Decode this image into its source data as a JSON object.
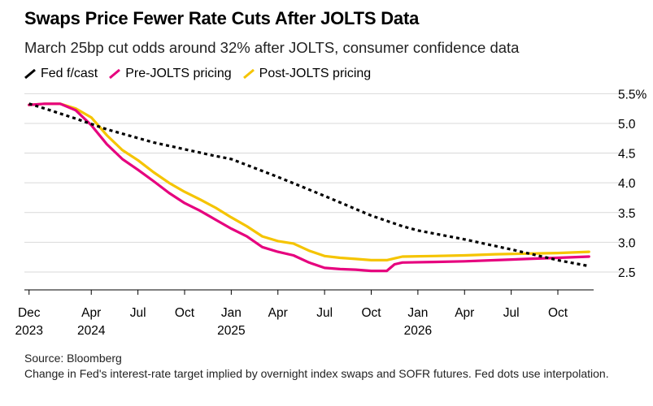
{
  "header": {
    "title": "Swaps Price Fewer Rate Cuts After JOLTS Data",
    "subtitle": "March 25bp cut odds around 32% after JOLTS, consumer confidence data"
  },
  "footer": {
    "source": "Source: Bloomberg",
    "note": "Change in Fed's interest-rate target implied by overnight index swaps and SOFR futures. Fed dots use interpolation."
  },
  "chart_data": {
    "type": "line",
    "title": "Swaps Price Fewer Rate Cuts After JOLTS Data",
    "subtitle": "March 25bp cut odds around 32% after JOLTS, consumer confidence data",
    "xlabel": "",
    "ylabel": "",
    "legend_position": "top-left",
    "grid": "horizontal",
    "x_unit": "months since Dec 2023",
    "xlim": [
      -0.3,
      36.3
    ],
    "ylim": [
      2.2,
      5.6
    ],
    "y_ticks": [
      {
        "value": 5.5,
        "label": "5.5%"
      },
      {
        "value": 5.0,
        "label": "5.0"
      },
      {
        "value": 4.5,
        "label": "4.5"
      },
      {
        "value": 4.0,
        "label": "4.0"
      },
      {
        "value": 3.5,
        "label": "3.5"
      },
      {
        "value": 3.0,
        "label": "3.0"
      },
      {
        "value": 2.5,
        "label": "2.5"
      }
    ],
    "x_ticks": [
      {
        "value": 0,
        "month": "Dec",
        "year": "2023"
      },
      {
        "value": 4,
        "month": "Apr",
        "year": "2024"
      },
      {
        "value": 7,
        "month": "Jul",
        "year": ""
      },
      {
        "value": 10,
        "month": "Oct",
        "year": ""
      },
      {
        "value": 13,
        "month": "Jan",
        "year": "2025"
      },
      {
        "value": 16,
        "month": "Apr",
        "year": ""
      },
      {
        "value": 19,
        "month": "Jul",
        "year": ""
      },
      {
        "value": 22,
        "month": "Oct",
        "year": ""
      },
      {
        "value": 25,
        "month": "Jan",
        "year": "2026"
      },
      {
        "value": 28,
        "month": "Apr",
        "year": ""
      },
      {
        "value": 31,
        "month": "Jul",
        "year": ""
      },
      {
        "value": 34,
        "month": "Oct",
        "year": ""
      }
    ],
    "series": [
      {
        "name": "Fed f/cast",
        "color": "#000000",
        "style": "dotted",
        "points": [
          [
            0,
            5.33
          ],
          [
            1,
            5.25
          ],
          [
            3,
            5.08
          ],
          [
            5,
            4.9
          ],
          [
            8,
            4.68
          ],
          [
            12,
            4.45
          ],
          [
            13,
            4.4
          ],
          [
            16,
            4.1
          ],
          [
            19,
            3.78
          ],
          [
            22,
            3.45
          ],
          [
            24,
            3.27
          ],
          [
            25,
            3.2
          ],
          [
            28,
            3.05
          ],
          [
            31,
            2.88
          ],
          [
            34,
            2.7
          ],
          [
            36,
            2.6
          ]
        ]
      },
      {
        "name": "Pre-JOLTS pricing",
        "color": "#e6007e",
        "style": "solid",
        "points": [
          [
            0,
            5.31
          ],
          [
            1,
            5.33
          ],
          [
            2,
            5.33
          ],
          [
            3,
            5.22
          ],
          [
            4,
            4.97
          ],
          [
            5,
            4.65
          ],
          [
            6,
            4.4
          ],
          [
            7,
            4.22
          ],
          [
            8,
            4.03
          ],
          [
            9,
            3.83
          ],
          [
            10,
            3.66
          ],
          [
            11,
            3.53
          ],
          [
            12,
            3.38
          ],
          [
            13,
            3.23
          ],
          [
            14,
            3.1
          ],
          [
            15,
            2.92
          ],
          [
            16,
            2.84
          ],
          [
            17,
            2.78
          ],
          [
            18,
            2.66
          ],
          [
            19,
            2.57
          ],
          [
            20,
            2.55
          ],
          [
            21,
            2.54
          ],
          [
            22,
            2.52
          ],
          [
            23,
            2.52
          ],
          [
            23.5,
            2.63
          ],
          [
            24,
            2.66
          ],
          [
            26,
            2.67
          ],
          [
            28,
            2.68
          ],
          [
            30,
            2.7
          ],
          [
            32,
            2.72
          ],
          [
            34,
            2.74
          ],
          [
            36,
            2.76
          ]
        ]
      },
      {
        "name": "Post-JOLTS pricing",
        "color": "#f5c400",
        "style": "solid",
        "points": [
          [
            0,
            5.31
          ],
          [
            1,
            5.33
          ],
          [
            2,
            5.33
          ],
          [
            3,
            5.25
          ],
          [
            4,
            5.1
          ],
          [
            5,
            4.8
          ],
          [
            6,
            4.55
          ],
          [
            7,
            4.38
          ],
          [
            8,
            4.18
          ],
          [
            9,
            4.0
          ],
          [
            10,
            3.85
          ],
          [
            11,
            3.72
          ],
          [
            12,
            3.58
          ],
          [
            13,
            3.42
          ],
          [
            14,
            3.27
          ],
          [
            15,
            3.1
          ],
          [
            16,
            3.02
          ],
          [
            17,
            2.98
          ],
          [
            18,
            2.86
          ],
          [
            19,
            2.77
          ],
          [
            20,
            2.74
          ],
          [
            21,
            2.72
          ],
          [
            22,
            2.7
          ],
          [
            23,
            2.7
          ],
          [
            23.5,
            2.73
          ],
          [
            24,
            2.76
          ],
          [
            26,
            2.77
          ],
          [
            28,
            2.78
          ],
          [
            30,
            2.8
          ],
          [
            32,
            2.81
          ],
          [
            34,
            2.82
          ],
          [
            36,
            2.84
          ]
        ]
      }
    ]
  }
}
